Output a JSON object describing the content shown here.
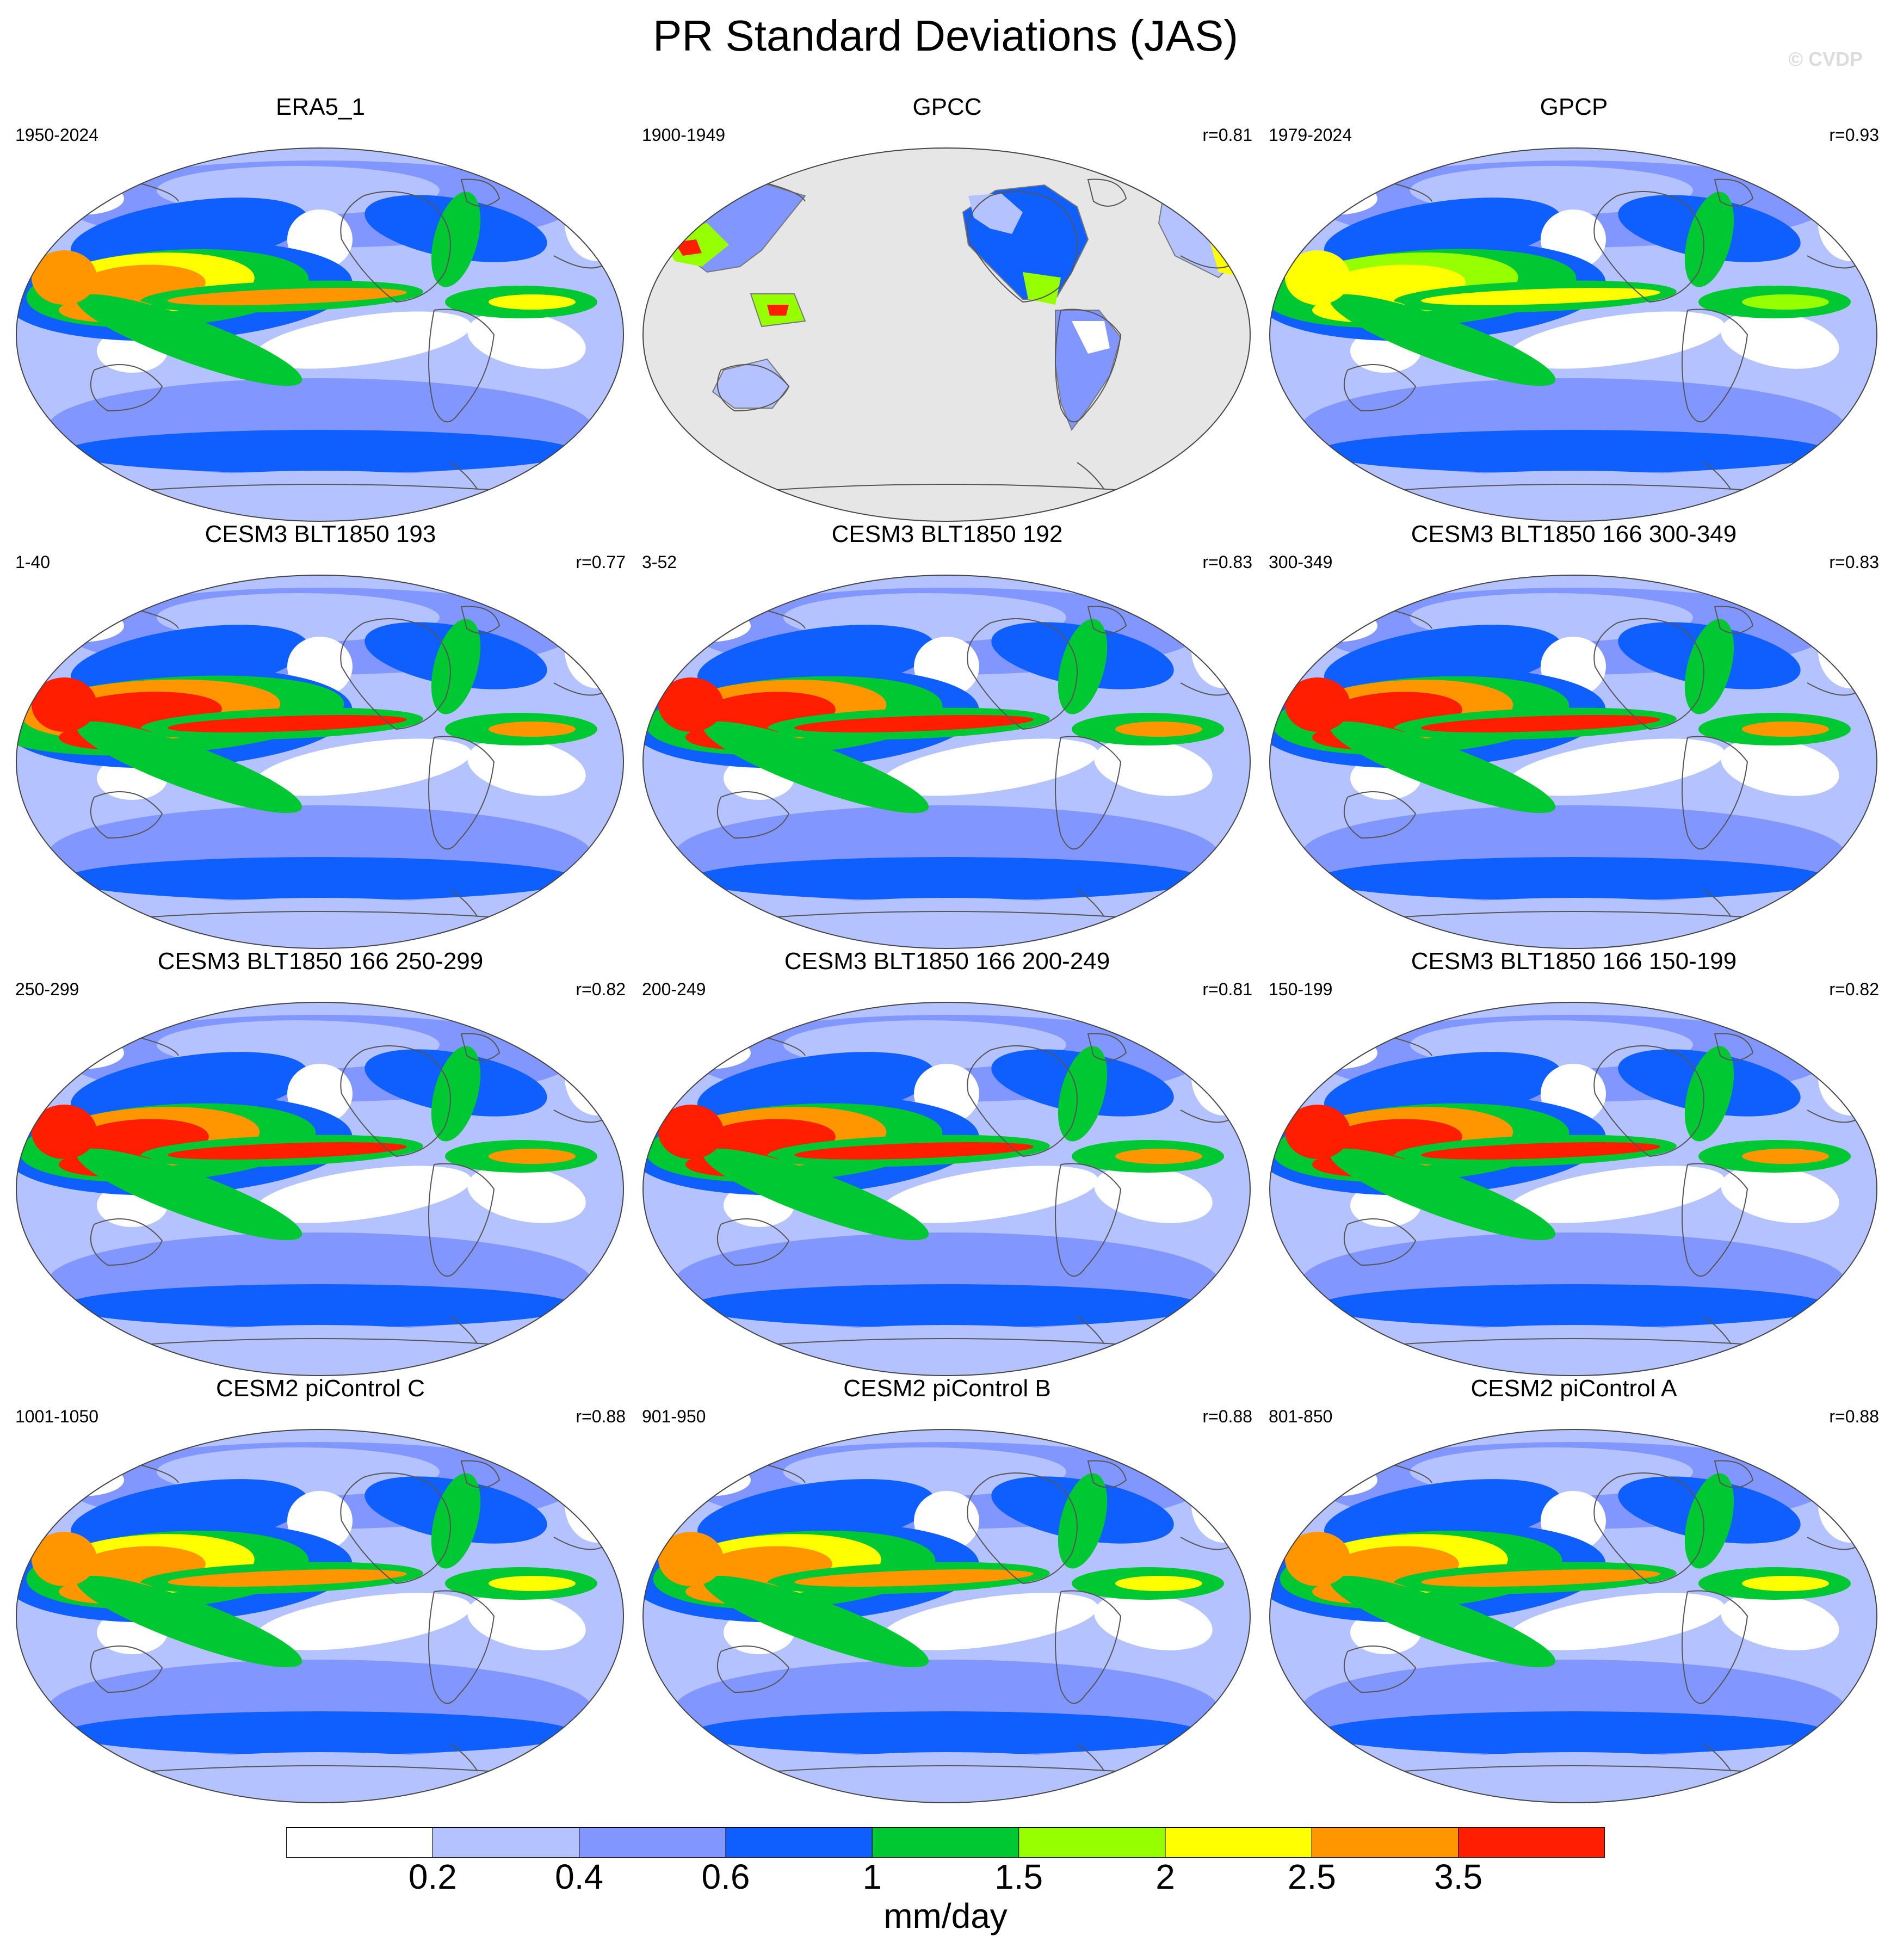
{
  "title": "PR Standard Deviations (JAS)",
  "watermark": "© CVDP",
  "panels": [
    {
      "title": "ERA5_1",
      "period": "1950-2024",
      "r": "",
      "style": "era5"
    },
    {
      "title": "GPCC",
      "period": "1900-1949",
      "r": "r=0.81",
      "style": "gpcc"
    },
    {
      "title": "GPCP",
      "period": "1979-2024",
      "r": "r=0.93",
      "style": "gpcp"
    },
    {
      "title": "CESM3 BLT1850 193",
      "period": "1-40",
      "r": "r=0.77",
      "style": "strong"
    },
    {
      "title": "CESM3 BLT1850 192",
      "period": "3-52",
      "r": "r=0.83",
      "style": "model3"
    },
    {
      "title": "CESM3 BLT1850 166 300-349",
      "period": "300-349",
      "r": "r=0.83",
      "style": "model3"
    },
    {
      "title": "CESM3 BLT1850 166 250-299",
      "period": "250-299",
      "r": "r=0.82",
      "style": "model3"
    },
    {
      "title": "CESM3 BLT1850 166 200-249",
      "period": "200-249",
      "r": "r=0.81",
      "style": "model3"
    },
    {
      "title": "CESM3 BLT1850 166 150-199",
      "period": "150-199",
      "r": "r=0.82",
      "style": "model3"
    },
    {
      "title": "CESM2 piControl C",
      "period": "1001-1050",
      "r": "r=0.88",
      "style": "model2"
    },
    {
      "title": "CESM2 piControl B",
      "period": "901-950",
      "r": "r=0.88",
      "style": "model2"
    },
    {
      "title": "CESM2 piControl A",
      "period": "801-850",
      "r": "r=0.88",
      "style": "model2"
    }
  ],
  "colorbar": {
    "units": "mm/day",
    "ticks": [
      "0.2",
      "0.4",
      "0.6",
      "1",
      "1.5",
      "2",
      "2.5",
      "3.5"
    ],
    "colors": [
      "#ffffff",
      "#b4c3ff",
      "#8296ff",
      "#0f5fff",
      "#00c832",
      "#96ff00",
      "#ffff00",
      "#ff9600",
      "#ff1e00"
    ],
    "missing_color": "#e6e6e6"
  }
}
